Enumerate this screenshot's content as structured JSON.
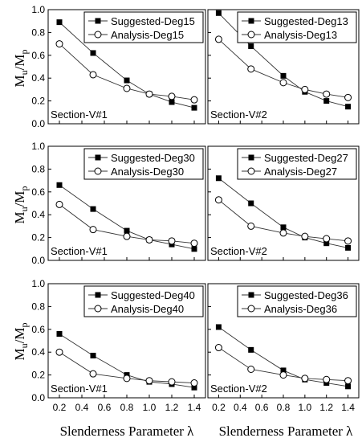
{
  "figure": {
    "xlabel": "Slenderness Parameter λ",
    "ylabel": {
      "main1": "M",
      "sub1": "u",
      "sep": "/M",
      "sub2": "p"
    }
  },
  "chart_data": [
    {
      "type": "line",
      "x": [
        0.2,
        0.5,
        0.8,
        1.0,
        1.2,
        1.4
      ],
      "series": [
        {
          "name": "Suggested-Deg15",
          "marker": "filled-square",
          "values": [
            0.89,
            0.62,
            0.38,
            0.26,
            0.19,
            0.14
          ]
        },
        {
          "name": "Analysis-Deg15",
          "marker": "open-circle",
          "values": [
            0.7,
            0.43,
            0.31,
            0.26,
            0.24,
            0.21
          ]
        }
      ],
      "annotation": "Section-V#1",
      "xticks": [
        "0.2",
        "0.4",
        "0.6",
        "0.8",
        "1.0",
        "1.2",
        "1.4"
      ],
      "yticks": [
        "0.0",
        "0.2",
        "0.4",
        "0.6",
        "0.8",
        "1.0"
      ],
      "xlim": [
        0.1,
        1.5
      ],
      "ylim": [
        0,
        1.0
      ],
      "legend": "top-right",
      "grid": false
    },
    {
      "type": "line",
      "x": [
        0.2,
        0.5,
        0.8,
        1.0,
        1.2,
        1.4
      ],
      "series": [
        {
          "name": "Suggested-Deg13",
          "marker": "filled-square",
          "values": [
            0.97,
            0.68,
            0.42,
            0.28,
            0.2,
            0.15
          ]
        },
        {
          "name": "Analysis-Deg13",
          "marker": "open-circle",
          "values": [
            0.74,
            0.48,
            0.36,
            0.3,
            0.26,
            0.23
          ]
        }
      ],
      "annotation": "Section-V#2",
      "xticks": [
        "0.2",
        "0.4",
        "0.6",
        "0.8",
        "1.0",
        "1.2",
        "1.4"
      ],
      "yticks": [
        "0.0",
        "0.2",
        "0.4",
        "0.6",
        "0.8",
        "1.0"
      ],
      "xlim": [
        0.1,
        1.5
      ],
      "ylim": [
        0,
        1.0
      ],
      "legend": "top-right",
      "grid": false
    },
    {
      "type": "line",
      "x": [
        0.2,
        0.5,
        0.8,
        1.0,
        1.2,
        1.4
      ],
      "series": [
        {
          "name": "Suggested-Deg30",
          "marker": "filled-square",
          "values": [
            0.66,
            0.45,
            0.26,
            0.18,
            0.14,
            0.1
          ]
        },
        {
          "name": "Analysis-Deg30",
          "marker": "open-circle",
          "values": [
            0.49,
            0.27,
            0.21,
            0.18,
            0.17,
            0.15
          ]
        }
      ],
      "annotation": "Section-V#1",
      "xticks": [
        "0.2",
        "0.4",
        "0.6",
        "0.8",
        "1.0",
        "1.2",
        "1.4"
      ],
      "yticks": [
        "0.0",
        "0.2",
        "0.4",
        "0.6",
        "0.8",
        "1.0"
      ],
      "xlim": [
        0.1,
        1.5
      ],
      "ylim": [
        0,
        1.0
      ],
      "legend": "top-right",
      "grid": false
    },
    {
      "type": "line",
      "x": [
        0.2,
        0.5,
        0.8,
        1.0,
        1.2,
        1.4
      ],
      "series": [
        {
          "name": "Suggested-Deg27",
          "marker": "filled-square",
          "values": [
            0.72,
            0.5,
            0.29,
            0.2,
            0.15,
            0.11
          ]
        },
        {
          "name": "Analysis-Deg27",
          "marker": "open-circle",
          "values": [
            0.53,
            0.3,
            0.24,
            0.21,
            0.19,
            0.17
          ]
        }
      ],
      "annotation": "Section-V#2",
      "xticks": [
        "0.2",
        "0.4",
        "0.6",
        "0.8",
        "1.0",
        "1.2",
        "1.4"
      ],
      "yticks": [
        "0.0",
        "0.2",
        "0.4",
        "0.6",
        "0.8",
        "1.0"
      ],
      "xlim": [
        0.1,
        1.5
      ],
      "ylim": [
        0,
        1.0
      ],
      "legend": "top-right",
      "grid": false
    },
    {
      "type": "line",
      "x": [
        0.2,
        0.5,
        0.8,
        1.0,
        1.2,
        1.4
      ],
      "series": [
        {
          "name": "Suggested-Deg40",
          "marker": "filled-square",
          "values": [
            0.56,
            0.37,
            0.2,
            0.14,
            0.12,
            0.09
          ]
        },
        {
          "name": "Analysis-Deg40",
          "marker": "open-circle",
          "values": [
            0.4,
            0.21,
            0.17,
            0.15,
            0.14,
            0.13
          ]
        }
      ],
      "annotation": "Section-V#1",
      "xticks": [
        "0.2",
        "0.4",
        "0.6",
        "0.8",
        "1.0",
        "1.2",
        "1.4"
      ],
      "yticks": [
        "0.0",
        "0.2",
        "0.4",
        "0.6",
        "0.8",
        "1.0"
      ],
      "xlim": [
        0.1,
        1.5
      ],
      "ylim": [
        0,
        1.0
      ],
      "legend": "top-right",
      "grid": false
    },
    {
      "type": "line",
      "x": [
        0.2,
        0.5,
        0.8,
        1.0,
        1.2,
        1.4
      ],
      "series": [
        {
          "name": "Suggested-Deg36",
          "marker": "filled-square",
          "values": [
            0.62,
            0.42,
            0.24,
            0.16,
            0.13,
            0.1
          ]
        },
        {
          "name": "Analysis-Deg36",
          "marker": "open-circle",
          "values": [
            0.44,
            0.25,
            0.2,
            0.17,
            0.16,
            0.15
          ]
        }
      ],
      "annotation": "Section-V#2",
      "xticks": [
        "0.2",
        "0.4",
        "0.6",
        "0.8",
        "1.0",
        "1.2",
        "1.4"
      ],
      "yticks": [
        "0.0",
        "0.2",
        "0.4",
        "0.6",
        "0.8",
        "1.0"
      ],
      "xlim": [
        0.1,
        1.5
      ],
      "ylim": [
        0,
        1.0
      ],
      "legend": "top-right",
      "grid": false
    }
  ]
}
